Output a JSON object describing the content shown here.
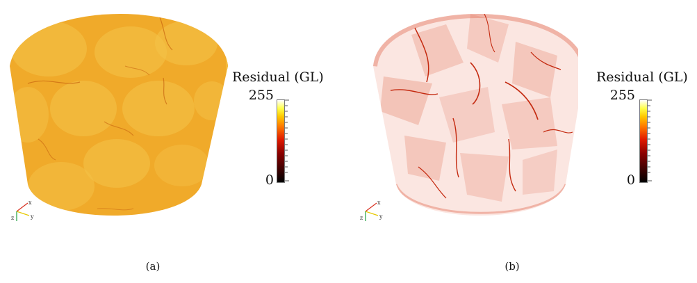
{
  "panels": [
    {
      "id": "a",
      "caption": "(a)",
      "colorbar": {
        "title": "Residual (GL)",
        "max": "255",
        "min": "0"
      },
      "colors": {
        "base": "#f0aa2a",
        "rim": "#f3b93b",
        "blob": "#f4c248",
        "crack": "#c86410"
      }
    },
    {
      "id": "b",
      "caption": "(b)",
      "colorbar": {
        "title": "Residual (GL)",
        "max": "255",
        "min": "0"
      },
      "colors": {
        "base": "#fbe6e1",
        "rim": "#f0b3a6",
        "sheet": "#e06a4e",
        "crack": "#c42a10"
      }
    }
  ],
  "axes_triad": {
    "labels": [
      "x",
      "y",
      "z"
    ],
    "colors": {
      "x": "#d83020",
      "y": "#e6c800",
      "z": "#20a040"
    }
  }
}
